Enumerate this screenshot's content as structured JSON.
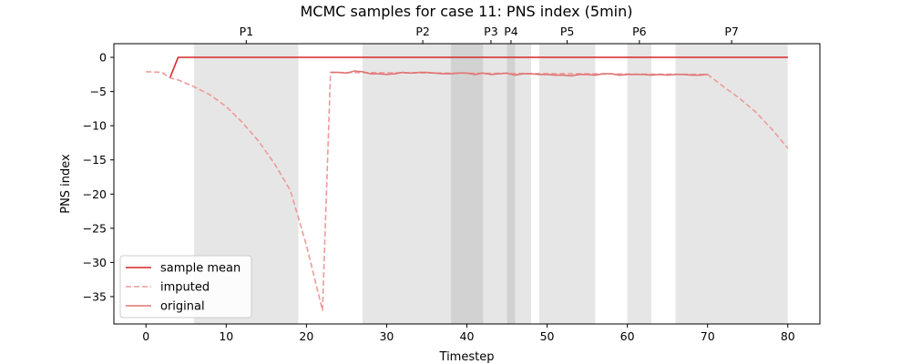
{
  "chart_data": {
    "type": "line",
    "title": "MCMC samples for case 11: PNS index (5min)",
    "xlabel": "Timestep",
    "ylabel": "PNS index",
    "xlim": [
      -4,
      84
    ],
    "ylim": [
      -39,
      2
    ],
    "x_ticks": [
      0,
      10,
      20,
      30,
      40,
      50,
      60,
      70,
      80
    ],
    "y_ticks": [
      0,
      -5,
      -10,
      -15,
      -20,
      -25,
      -30,
      -35
    ],
    "grid": false,
    "legend_position": "lower-left",
    "periods": [
      {
        "label": "P1",
        "start": 6,
        "end": 19
      },
      {
        "label": "P2",
        "start": 27,
        "end": 42
      },
      {
        "label": "P3",
        "start": 38,
        "end": 48
      },
      {
        "label": "P4",
        "start": 45,
        "end": 46
      },
      {
        "label": "P5",
        "start": 49,
        "end": 56
      },
      {
        "label": "P6",
        "start": 60,
        "end": 63
      },
      {
        "label": "P7",
        "start": 66,
        "end": 80
      }
    ],
    "series": [
      {
        "name": "sample mean",
        "color": "#d62728",
        "style": "solid",
        "x": [
          3,
          4,
          80
        ],
        "y": [
          -3,
          0,
          0
        ]
      },
      {
        "name": "imputed",
        "color": "#ee9a99",
        "style": "dashed",
        "x": [
          0,
          2,
          3,
          4,
          6,
          8,
          10,
          12,
          14,
          16,
          18,
          20,
          22,
          23,
          70,
          72,
          74,
          76,
          78,
          80
        ],
        "y": [
          -2.1,
          -2.2,
          -3.0,
          -3.3,
          -4.3,
          -5.5,
          -7.2,
          -9.5,
          -12.2,
          -15.5,
          -19.5,
          -27.5,
          -37,
          -2.2,
          -2.5,
          -4.3,
          -6.0,
          -8.0,
          -10.5,
          -13.3
        ]
      },
      {
        "name": "original",
        "color": "#e07575",
        "style": "solid",
        "x": [
          23,
          24,
          25,
          26,
          27,
          28,
          29,
          30,
          31,
          32,
          33,
          34,
          35,
          36,
          37,
          38,
          39,
          40,
          41,
          42,
          43,
          44,
          45,
          46,
          47,
          48,
          49,
          50,
          51,
          52,
          53,
          54,
          55,
          56,
          57,
          58,
          59,
          60,
          61,
          62,
          63,
          64,
          65,
          66,
          67,
          68,
          69,
          70
        ],
        "y": [
          -2.2,
          -2.2,
          -2.3,
          -2.0,
          -2.1,
          -2.4,
          -2.4,
          -2.5,
          -2.4,
          -2.2,
          -2.3,
          -2.2,
          -2.2,
          -2.3,
          -2.4,
          -2.4,
          -2.3,
          -2.3,
          -2.5,
          -2.3,
          -2.5,
          -2.4,
          -2.3,
          -2.6,
          -2.4,
          -2.4,
          -2.5,
          -2.5,
          -2.6,
          -2.6,
          -2.7,
          -2.5,
          -2.5,
          -2.6,
          -2.4,
          -2.4,
          -2.6,
          -2.5,
          -2.5,
          -2.5,
          -2.6,
          -2.5,
          -2.6,
          -2.5,
          -2.5,
          -2.6,
          -2.6,
          -2.5
        ]
      }
    ]
  }
}
